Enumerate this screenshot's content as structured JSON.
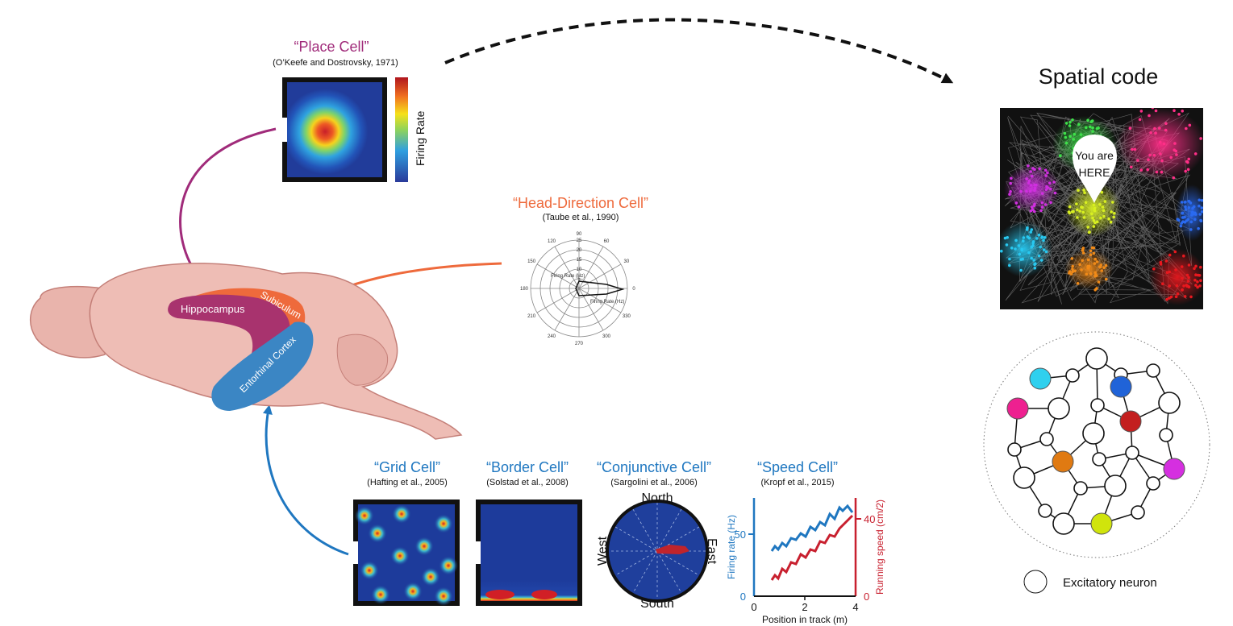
{
  "place_cell": {
    "title": "“Place Cell”",
    "citation": "(O’Keefe and Dostrovsky, 1971)",
    "colorbar_label": "Firing Rate"
  },
  "head_direction_cell": {
    "title": "“Head-Direction Cell”",
    "citation": "(Taube et al., 1990)",
    "angles": [
      "90",
      "60",
      "30",
      "0",
      "330",
      "300",
      "270",
      "240",
      "210",
      "180",
      "150",
      "120"
    ],
    "radial_ticks": [
      "25",
      "20",
      "15",
      "10",
      "5"
    ],
    "axis_label_upper": "Firing Rate (Hz)",
    "axis_label_lower": "Firing Rate (Hz)"
  },
  "brain": {
    "hippocampus": "Hippocampus",
    "subiculum": "Subiculum",
    "entorhinal": "Entorhinal Cortex"
  },
  "grid_cell": {
    "title": "“Grid Cell”",
    "citation": "(Hafting et al., 2005)"
  },
  "border_cell": {
    "title": "“Border Cell”",
    "citation": "(Solstad et al., 2008)"
  },
  "conjunctive_cell": {
    "title": "“Conjunctive Cell”",
    "citation": "(Sargolini et al., 2006)",
    "north": "North",
    "south": "South",
    "east": "East",
    "west": "West"
  },
  "speed_cell": {
    "title": "“Speed Cell”",
    "citation": "(Kropf et al., 2015)",
    "xlabel": "Position in track (m)",
    "ylabel_left": "Firing rate (Hz)",
    "ylabel_right": "Running speed (cm/2)",
    "xticks": [
      "0",
      "2",
      "4"
    ],
    "yticks_left": [
      "0",
      "50"
    ],
    "yticks_right": [
      "0",
      "40"
    ]
  },
  "spatial_code": {
    "title": "Spatial code",
    "pin_line1": "You are",
    "pin_line2": "HERE"
  },
  "network": {
    "legend": "Excitatory neuron"
  },
  "colors": {
    "blue": "#1f77c0",
    "pink": "#a02b7a",
    "orange": "#ee6a3c",
    "red": "#c8202f",
    "map_blue": "#1f3f9c"
  }
}
